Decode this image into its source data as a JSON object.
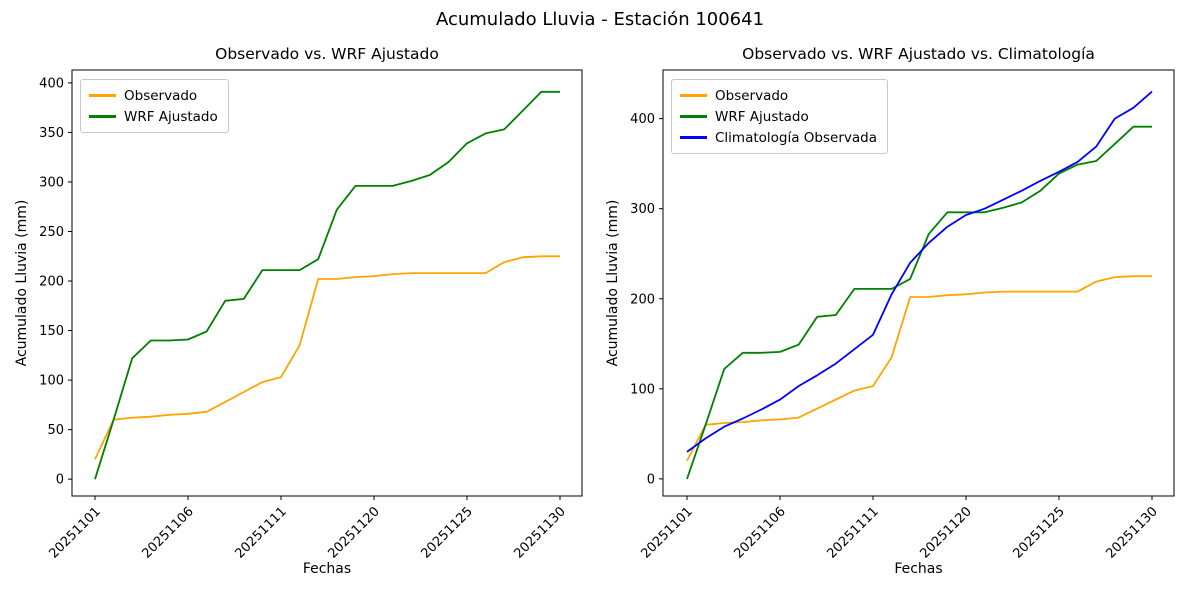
{
  "figure": {
    "title": "Acumulado Lluvia - Estación 100641"
  },
  "colors": {
    "observado": "#ffa500",
    "wrf": "#008000",
    "climatologia": "#0000ff"
  },
  "chart_data": [
    {
      "type": "line",
      "title": "Observado vs. WRF Ajustado",
      "xlabel": "Fechas",
      "ylabel": "Acumulado Lluvia (mm)",
      "legend_position": "upper left",
      "grid": false,
      "ylim": [
        -17,
        413
      ],
      "yticks": [
        0,
        50,
        100,
        150,
        200,
        250,
        300,
        350,
        400
      ],
      "x": [
        "20251101",
        "20251102",
        "20251103",
        "20251104",
        "20251105",
        "20251106",
        "20251107",
        "20251108",
        "20251109",
        "20251110",
        "20251111",
        "20251112",
        "20251113",
        "20251118",
        "20251119",
        "20251120",
        "20251121",
        "20251122",
        "20251123",
        "20251124",
        "20251125",
        "20251126",
        "20251127",
        "20251128",
        "20251129",
        "20251130"
      ],
      "x_tick_indices": [
        0,
        5,
        10,
        15,
        20,
        25
      ],
      "x_ticklabels": [
        "20251101",
        "20251106",
        "20251111",
        "20251120",
        "20251125",
        "20251130"
      ],
      "series": [
        {
          "name": "Observado",
          "color": "#ffa500",
          "values": [
            20,
            60,
            62,
            63,
            65,
            66,
            68,
            78,
            88,
            98,
            103,
            135,
            202,
            202,
            204,
            205,
            207,
            208,
            208,
            208,
            208,
            208,
            219,
            224,
            225,
            225
          ]
        },
        {
          "name": "WRF Ajustado",
          "color": "#008000",
          "values": [
            0,
            60,
            122,
            140,
            140,
            141,
            149,
            180,
            182,
            211,
            211,
            211,
            222,
            272,
            296,
            296,
            296,
            301,
            307,
            320,
            339,
            349,
            353,
            372,
            391,
            391
          ]
        }
      ]
    },
    {
      "type": "line",
      "title": "Observado vs. WRF Ajustado vs. Climatología",
      "xlabel": "Fechas",
      "ylabel": "Acumulado Lluvia (mm)",
      "legend_position": "upper left",
      "grid": false,
      "ylim": [
        -19,
        454
      ],
      "yticks": [
        0,
        100,
        200,
        300,
        400
      ],
      "x": [
        "20251101",
        "20251102",
        "20251103",
        "20251104",
        "20251105",
        "20251106",
        "20251107",
        "20251108",
        "20251109",
        "20251110",
        "20251111",
        "20251112",
        "20251113",
        "20251118",
        "20251119",
        "20251120",
        "20251121",
        "20251122",
        "20251123",
        "20251124",
        "20251125",
        "20251126",
        "20251127",
        "20251128",
        "20251129",
        "20251130"
      ],
      "x_tick_indices": [
        0,
        5,
        10,
        15,
        20,
        25
      ],
      "x_ticklabels": [
        "20251101",
        "20251106",
        "20251111",
        "20251120",
        "20251125",
        "20251130"
      ],
      "series": [
        {
          "name": "Observado",
          "color": "#ffa500",
          "values": [
            20,
            60,
            62,
            63,
            65,
            66,
            68,
            78,
            88,
            98,
            103,
            135,
            202,
            202,
            204,
            205,
            207,
            208,
            208,
            208,
            208,
            208,
            219,
            224,
            225,
            225
          ]
        },
        {
          "name": "WRF Ajustado",
          "color": "#008000",
          "values": [
            0,
            60,
            122,
            140,
            140,
            141,
            149,
            180,
            182,
            211,
            211,
            211,
            222,
            272,
            296,
            296,
            296,
            301,
            307,
            320,
            339,
            349,
            353,
            372,
            391,
            391
          ]
        },
        {
          "name": "Climatología Observada",
          "color": "#0000ff",
          "values": [
            30,
            45,
            58,
            67,
            77,
            88,
            103,
            115,
            128,
            144,
            160,
            205,
            240,
            262,
            280,
            293,
            300,
            310,
            320,
            331,
            341,
            352,
            369,
            400,
            412,
            430
          ]
        }
      ]
    }
  ]
}
